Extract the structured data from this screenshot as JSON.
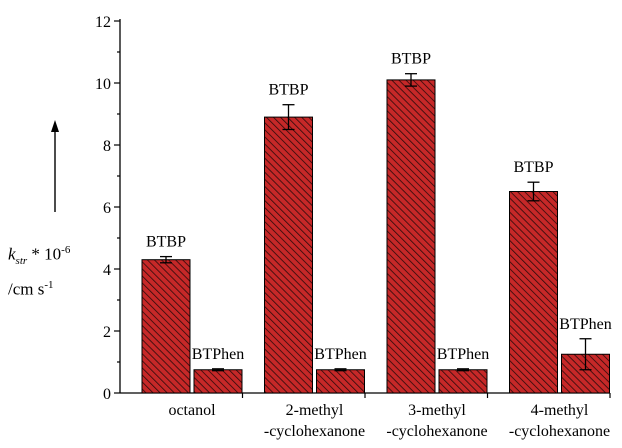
{
  "chart_data": {
    "type": "bar",
    "categories": [
      "octanol",
      "2-methyl\n-cyclohexanone",
      "3-methyl\n-cyclohexanone",
      "4-methyl\n-cyclohexanone"
    ],
    "series": [
      {
        "name": "BTBP",
        "values": [
          4.3,
          8.9,
          10.1,
          6.5
        ],
        "errors": [
          0.1,
          0.4,
          0.2,
          0.3
        ]
      },
      {
        "name": "BTPhen",
        "values": [
          0.75,
          0.75,
          0.75,
          1.25
        ],
        "errors": [
          0.03,
          0.03,
          0.03,
          0.5
        ]
      }
    ],
    "bar_labels": [
      "BTBP",
      "BTPhen"
    ],
    "ylabel": {
      "symbol": "k",
      "subscript": "str",
      "times": " * 10",
      "exponent": "-6",
      "unit": "/cm s",
      "unit_exponent": "-1"
    },
    "ylim": [
      0,
      12
    ],
    "yticks": [
      0,
      2,
      4,
      6,
      8,
      10,
      12
    ],
    "bar_color": "#c62828",
    "hatch": "diagonal",
    "grid": false,
    "legend": "none"
  }
}
